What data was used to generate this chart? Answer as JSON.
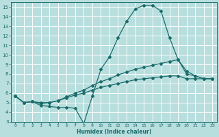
{
  "xlabel": "Humidex (Indice chaleur)",
  "xlim": [
    -0.5,
    23.5
  ],
  "ylim": [
    3,
    15.5
  ],
  "xticks": [
    0,
    1,
    2,
    3,
    4,
    5,
    6,
    7,
    8,
    9,
    10,
    11,
    12,
    13,
    14,
    15,
    16,
    17,
    18,
    19,
    20,
    21,
    22,
    23
  ],
  "yticks": [
    3,
    4,
    5,
    6,
    7,
    8,
    9,
    10,
    11,
    12,
    13,
    14,
    15
  ],
  "bg_color": "#b8dede",
  "grid_color": "#ffffff",
  "line_color": "#1a6b6b",
  "line1_x": [
    0,
    1,
    2,
    3,
    4,
    5,
    6,
    7,
    8,
    9,
    10,
    11,
    12,
    13,
    14,
    15,
    16,
    17,
    18,
    19,
    20,
    21,
    22,
    23
  ],
  "line1_y": [
    5.7,
    5.0,
    5.1,
    4.7,
    4.6,
    4.5,
    4.5,
    4.4,
    2.8,
    5.7,
    8.5,
    9.8,
    11.8,
    13.5,
    14.8,
    15.2,
    15.2,
    14.6,
    11.8,
    9.5,
    8.3,
    7.8,
    7.5,
    7.5
  ],
  "line2_x": [
    0,
    1,
    2,
    3,
    4,
    5,
    6,
    7,
    8,
    9,
    10,
    11,
    12,
    13,
    14,
    15,
    16,
    17,
    18,
    19,
    20,
    21,
    22,
    23
  ],
  "line2_y": [
    5.7,
    5.0,
    5.1,
    4.9,
    5.0,
    5.2,
    5.6,
    6.0,
    6.3,
    6.8,
    7.2,
    7.5,
    7.9,
    8.2,
    8.5,
    8.7,
    8.9,
    9.1,
    9.3,
    9.5,
    8.0,
    7.8,
    7.5,
    7.5
  ],
  "line3_x": [
    0,
    1,
    2,
    3,
    4,
    5,
    6,
    7,
    8,
    9,
    10,
    11,
    12,
    13,
    14,
    15,
    16,
    17,
    18,
    19,
    20,
    21,
    22,
    23
  ],
  "line3_y": [
    5.7,
    5.0,
    5.1,
    5.0,
    5.0,
    5.2,
    5.5,
    5.8,
    6.0,
    6.3,
    6.6,
    6.8,
    7.0,
    7.2,
    7.4,
    7.5,
    7.6,
    7.7,
    7.8,
    7.8,
    7.5,
    7.5,
    7.5,
    7.5
  ]
}
